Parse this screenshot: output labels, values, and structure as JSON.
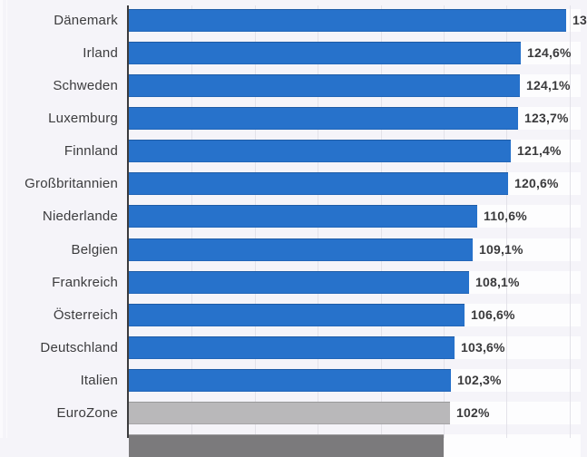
{
  "chart_data": {
    "type": "bar",
    "orientation": "horizontal",
    "title": "",
    "xlabel": "",
    "ylabel": "",
    "unit": "%",
    "decimal_separator": ",",
    "legend": "none",
    "x_axis": {
      "min": 0,
      "max_visible": 140,
      "gridline_step": 20,
      "tick_labels_visible": false
    },
    "rows": [
      {
        "label": "Dänemark",
        "value": 139,
        "value_label": "13",
        "value_label_clipped_at_right_edge": true,
        "value_estimated_from_bar_length": true,
        "color": "blue"
      },
      {
        "label": "Irland",
        "value": 124.6,
        "value_label": "124,6%",
        "color": "blue"
      },
      {
        "label": "Schweden",
        "value": 124.1,
        "value_label": "124,1%",
        "color": "blue"
      },
      {
        "label": "Luxemburg",
        "value": 123.7,
        "value_label": "123,7%",
        "color": "blue"
      },
      {
        "label": "Finnland",
        "value": 121.4,
        "value_label": "121,4%",
        "color": "blue"
      },
      {
        "label": "Großbritannien",
        "value": 120.6,
        "value_label": "120,6%",
        "color": "blue"
      },
      {
        "label": "Niederlande",
        "value": 110.6,
        "value_label": "110,6%",
        "color": "blue"
      },
      {
        "label": "Belgien",
        "value": 109.1,
        "value_label": "109,1%",
        "color": "blue"
      },
      {
        "label": "Frankreich",
        "value": 108.1,
        "value_label": "108,1%",
        "color": "blue"
      },
      {
        "label": "Österreich",
        "value": 106.6,
        "value_label": "106,6%",
        "color": "blue"
      },
      {
        "label": "Deutschland",
        "value": 103.6,
        "value_label": "103,6%",
        "color": "blue"
      },
      {
        "label": "Italien",
        "value": 102.3,
        "value_label": "102,3%",
        "color": "blue"
      },
      {
        "label": "EuroZone",
        "value": 102,
        "value_label": "102%",
        "color": "gray"
      },
      {
        "label": "",
        "value": 100,
        "value_label": "",
        "row_clipped_at_bottom_edge": true,
        "value_estimated_from_bar_length": true,
        "color": "dark_gray"
      }
    ],
    "colors": {
      "blue": "#2772CB",
      "gray": "#B9B8BA",
      "dark_gray": "#7B7A7C",
      "axis": "#3B3B3D",
      "text": "#3C3C3E",
      "background": "#F5F4F9",
      "row_track": "#FDFDFE",
      "gridline": "#E3E2E9"
    }
  }
}
